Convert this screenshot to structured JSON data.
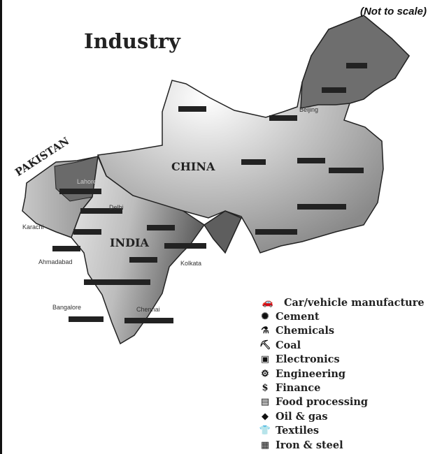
{
  "title": "Industry",
  "scale_note": "(Not to scale)",
  "countries": {
    "china": "CHINA",
    "india": "INDIA",
    "pakistan": "PAKISTAN"
  },
  "cities": {
    "beijing": "Beijing",
    "lahore": "Lahore",
    "delhi": "Delhi",
    "karachi": "Karachi",
    "ahmadabad": "Ahmadabad",
    "kolkata": "Kolkata",
    "bangalore": "Bangalore",
    "chennai": "Chennai"
  },
  "legend": [
    {
      "label": "Car/vehicle manufacture",
      "icon": "car-icon",
      "glyph": "🚗"
    },
    {
      "label": "Cement",
      "icon": "cement-icon",
      "glyph": "✺"
    },
    {
      "label": "Chemicals",
      "icon": "flask-icon",
      "glyph": "⚗"
    },
    {
      "label": "Coal",
      "icon": "miner-icon",
      "glyph": "⛏"
    },
    {
      "label": "Electronics",
      "icon": "electronics-icon",
      "glyph": "▣"
    },
    {
      "label": "Engineering",
      "icon": "gear-icon",
      "glyph": "⚙"
    },
    {
      "label": "Finance",
      "icon": "finance-icon",
      "glyph": "$"
    },
    {
      "label": "Food processing",
      "icon": "food-can-icon",
      "glyph": "▤"
    },
    {
      "label": "Oil & gas",
      "icon": "oil-drop-icon",
      "glyph": "◆"
    },
    {
      "label": "Textiles",
      "icon": "shirt-icon",
      "glyph": "👕"
    },
    {
      "label": "Iron & steel",
      "icon": "iron-steel-icon",
      "glyph": "▦"
    }
  ],
  "colors": {
    "dark_region": "#6e6e6e",
    "light_region": "#d9d9d9",
    "outline": "#222222"
  }
}
